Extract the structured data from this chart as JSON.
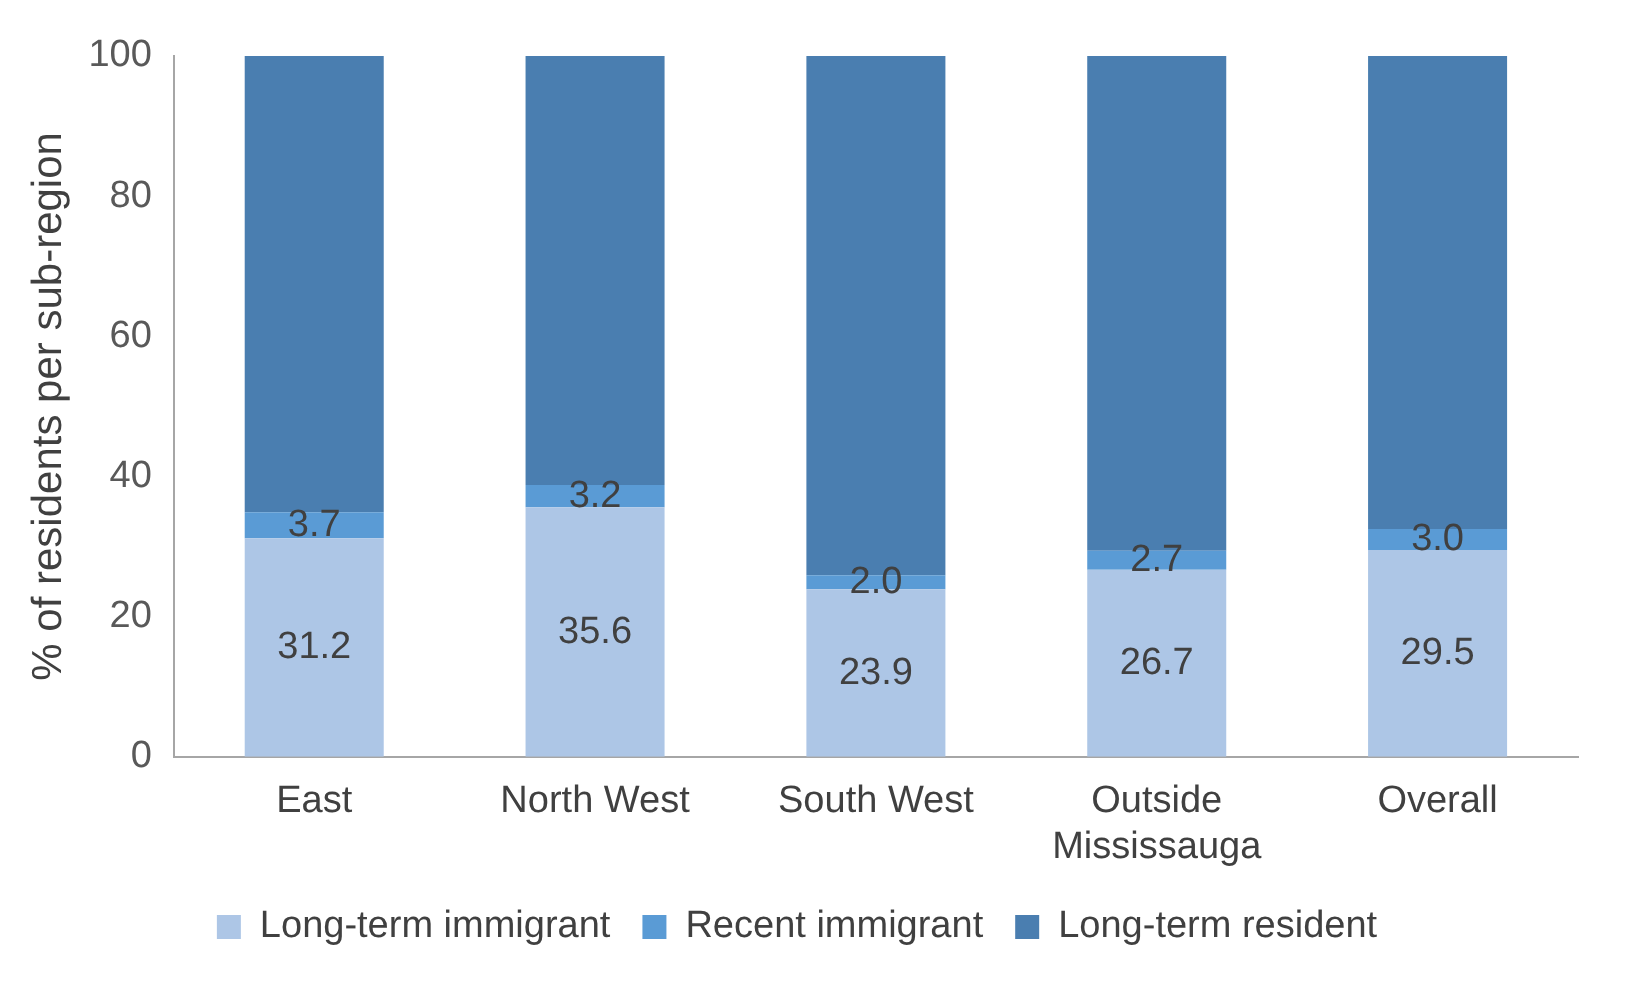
{
  "chart_data": {
    "type": "bar",
    "stacked": true,
    "ylabel": "% of residents per sub-region",
    "categories": [
      "East",
      "North West",
      "South West",
      "Outside Mississauga",
      "Overall"
    ],
    "series": [
      {
        "name": "Long-term immigrant",
        "color": "#adc6e6",
        "values": [
          31.2,
          35.6,
          23.9,
          26.7,
          29.5
        ],
        "value_labels": [
          "31.2",
          "35.6",
          "23.9",
          "26.7",
          "29.5"
        ]
      },
      {
        "name": "Recent immigrant",
        "color": "#5a9bd5",
        "values": [
          3.7,
          3.2,
          2.0,
          2.7,
          3.0
        ],
        "value_labels": [
          "3.7",
          "3.2",
          "2.0",
          "2.7",
          "3.0"
        ]
      },
      {
        "name": "Long-term resident",
        "color": "#4a7eb0",
        "values": [
          65.1,
          61.2,
          74.1,
          70.6,
          67.5
        ]
      }
    ],
    "ylim": [
      0,
      100
    ],
    "yticks": [
      0,
      20,
      40,
      60,
      80,
      100
    ],
    "grid": false,
    "legend": "bottom"
  }
}
